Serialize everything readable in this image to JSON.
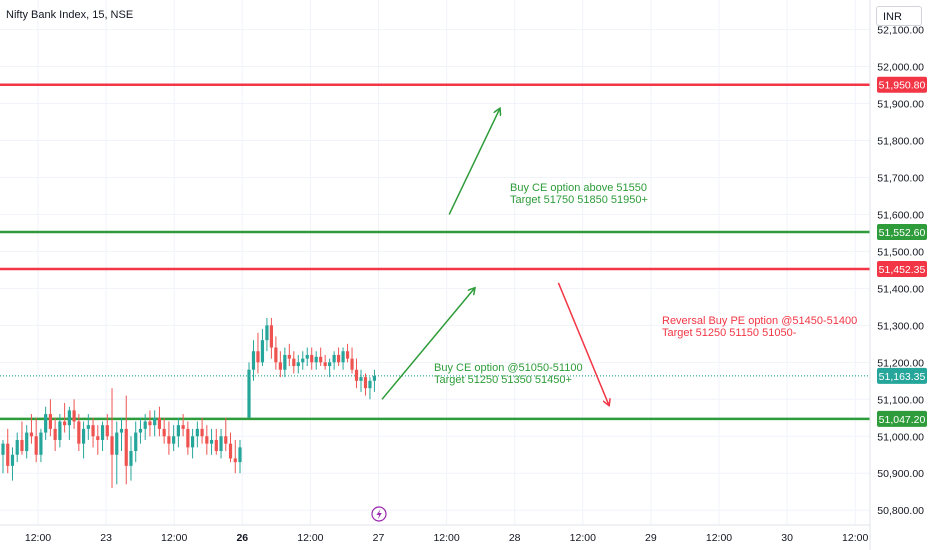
{
  "header": {
    "title": "Nifty Bank Index, 15, NSE",
    "currency": "INR"
  },
  "colors": {
    "up": "#26a69a",
    "down": "#ef5350",
    "level_red": "#f23645",
    "level_green": "#2e9c3a",
    "grid": "#f0f3fa",
    "price_dotted": "#089981",
    "axis_text": "#131722",
    "note_green": "#2e9c3a",
    "note_red": "#f23645"
  },
  "chart_data": {
    "type": "candlestick",
    "title": "Nifty Bank Index, 15, NSE",
    "ylim": [
      50760,
      52180
    ],
    "y_ticks": [
      "52,100.00",
      "52,000.00",
      "51,900.00",
      "51,800.00",
      "51,700.00",
      "51,600.00",
      "51,500.00",
      "51,400.00",
      "51,300.00",
      "51,200.00",
      "51,100.00",
      "51,000.00",
      "50,900.00",
      "50,800.00"
    ],
    "x_ticks": [
      "12:00",
      "23",
      "12:00",
      "26",
      "12:00",
      "27",
      "12:00",
      "28",
      "12:00",
      "29",
      "12:00",
      "30",
      "12:00"
    ],
    "bold_x_tick": "26",
    "horizontal_levels": [
      {
        "value": 51950.8,
        "label": "51,950.80",
        "color": "red"
      },
      {
        "value": 51552.6,
        "label": "51,552.60",
        "color": "green"
      },
      {
        "value": 51452.35,
        "label": "51,452.35",
        "color": "red"
      },
      {
        "value": 51047.2,
        "label": "51,047.20",
        "color": "green"
      }
    ],
    "last_price": {
      "value": 51163.35,
      "label": "51,163.35"
    },
    "annotations": [
      {
        "lines": [
          "Buy CE option above 51550",
          "Target 51750 51850 51950+"
        ],
        "color": "green"
      },
      {
        "lines": [
          "Buy CE option @51050-51100",
          "Target 51250 51350 51450+"
        ],
        "color": "green"
      },
      {
        "lines": [
          "Reversal Buy PE option @51450-51400",
          "Target 51250 51150 51050-"
        ],
        "color": "red"
      }
    ],
    "arrows": [
      {
        "from": [
          51100,
          51405
        ],
        "to": [
          51400,
          51416
        ],
        "color": "green"
      },
      {
        "from": [
          51600,
          51413
        ],
        "to": [
          51885,
          51419
        ],
        "color": "green"
      },
      {
        "from": [
          51415,
          51426
        ],
        "to": [
          51085,
          51432
        ],
        "color": "red"
      }
    ],
    "candles": [
      [
        50950,
        50990,
        50900,
        50980
      ],
      [
        50980,
        51020,
        50900,
        50920
      ],
      [
        50920,
        50970,
        50880,
        50950
      ],
      [
        50950,
        51010,
        50930,
        50990
      ],
      [
        50990,
        51040,
        50950,
        50960
      ],
      [
        50960,
        51030,
        50940,
        51010
      ],
      [
        51010,
        51060,
        50980,
        51000
      ],
      [
        51000,
        51050,
        50930,
        50950
      ],
      [
        50950,
        51020,
        50930,
        51010
      ],
      [
        51010,
        51080,
        50990,
        51060
      ],
      [
        51060,
        51100,
        51000,
        51020
      ],
      [
        51020,
        51050,
        50960,
        50990
      ],
      [
        50990,
        51060,
        50970,
        51040
      ],
      [
        51040,
        51090,
        51010,
        51030
      ],
      [
        51030,
        51080,
        50990,
        51070
      ],
      [
        51070,
        51100,
        51020,
        51040
      ],
      [
        51040,
        51060,
        50960,
        50980
      ],
      [
        50980,
        51040,
        50940,
        51020
      ],
      [
        51020,
        51060,
        50990,
        51030
      ],
      [
        51030,
        51050,
        50970,
        51000
      ],
      [
        51000,
        51030,
        50950,
        50990
      ],
      [
        50990,
        51040,
        50960,
        51030
      ],
      [
        51030,
        51060,
        50990,
        51000
      ],
      [
        51000,
        51130,
        50860,
        50950
      ],
      [
        50950,
        51040,
        50870,
        51010
      ],
      [
        51010,
        51050,
        50960,
        51020
      ],
      [
        51020,
        51110,
        50870,
        50920
      ],
      [
        50920,
        51000,
        50880,
        50960
      ],
      [
        50960,
        51040,
        50930,
        51010
      ],
      [
        51010,
        51050,
        50980,
        51020
      ],
      [
        51020,
        51060,
        50990,
        51040
      ],
      [
        51040,
        51070,
        51000,
        51030
      ],
      [
        51030,
        51070,
        51000,
        51050
      ],
      [
        51050,
        51080,
        51000,
        51020
      ],
      [
        51020,
        51050,
        50980,
        51000
      ],
      [
        51000,
        51040,
        50950,
        50980
      ],
      [
        50980,
        51030,
        50960,
        51000
      ],
      [
        51000,
        51050,
        50970,
        51030
      ],
      [
        51030,
        51060,
        51000,
        51020
      ],
      [
        51020,
        51040,
        50950,
        50970
      ],
      [
        50970,
        51020,
        50940,
        51000
      ],
      [
        51000,
        51040,
        50970,
        51020
      ],
      [
        51020,
        51050,
        50980,
        51000
      ],
      [
        51000,
        51030,
        50950,
        50980
      ],
      [
        50980,
        51020,
        50950,
        50990
      ],
      [
        50990,
        51020,
        50950,
        50960
      ],
      [
        50960,
        51020,
        50940,
        51000
      ],
      [
        51000,
        51050,
        50960,
        50980
      ],
      [
        50980,
        51010,
        50930,
        50940
      ],
      [
        50940,
        50990,
        50900,
        50930
      ],
      [
        50930,
        50990,
        50900,
        50970
      ],
      [
        51050,
        51200,
        51050,
        51180
      ],
      [
        51180,
        51260,
        51150,
        51230
      ],
      [
        51230,
        51280,
        51170,
        51200
      ],
      [
        51200,
        51290,
        51190,
        51260
      ],
      [
        51260,
        51320,
        51230,
        51300
      ],
      [
        51300,
        51320,
        51210,
        51240
      ],
      [
        51240,
        51270,
        51180,
        51200
      ],
      [
        51200,
        51230,
        51160,
        51180
      ],
      [
        51180,
        51240,
        51160,
        51220
      ],
      [
        51220,
        51250,
        51190,
        51210
      ],
      [
        51210,
        51230,
        51170,
        51190
      ],
      [
        51190,
        51220,
        51170,
        51200
      ],
      [
        51200,
        51230,
        51180,
        51210
      ],
      [
        51210,
        51240,
        51190,
        51220
      ],
      [
        51220,
        51240,
        51180,
        51200
      ],
      [
        51200,
        51230,
        51180,
        51215
      ],
      [
        51215,
        51240,
        51190,
        51200
      ],
      [
        51200,
        51220,
        51180,
        51190
      ],
      [
        51190,
        51210,
        51160,
        51200
      ],
      [
        51200,
        51230,
        51180,
        51220
      ],
      [
        51220,
        51240,
        51190,
        51200
      ],
      [
        51200,
        51240,
        51180,
        51230
      ],
      [
        51230,
        51250,
        51200,
        51210
      ],
      [
        51210,
        51240,
        51170,
        51180
      ],
      [
        51180,
        51210,
        51130,
        51150
      ],
      [
        51150,
        51180,
        51120,
        51160
      ],
      [
        51160,
        51170,
        51110,
        51130
      ],
      [
        51130,
        51160,
        51100,
        51150
      ],
      [
        51150,
        51180,
        51120,
        51163
      ]
    ]
  }
}
